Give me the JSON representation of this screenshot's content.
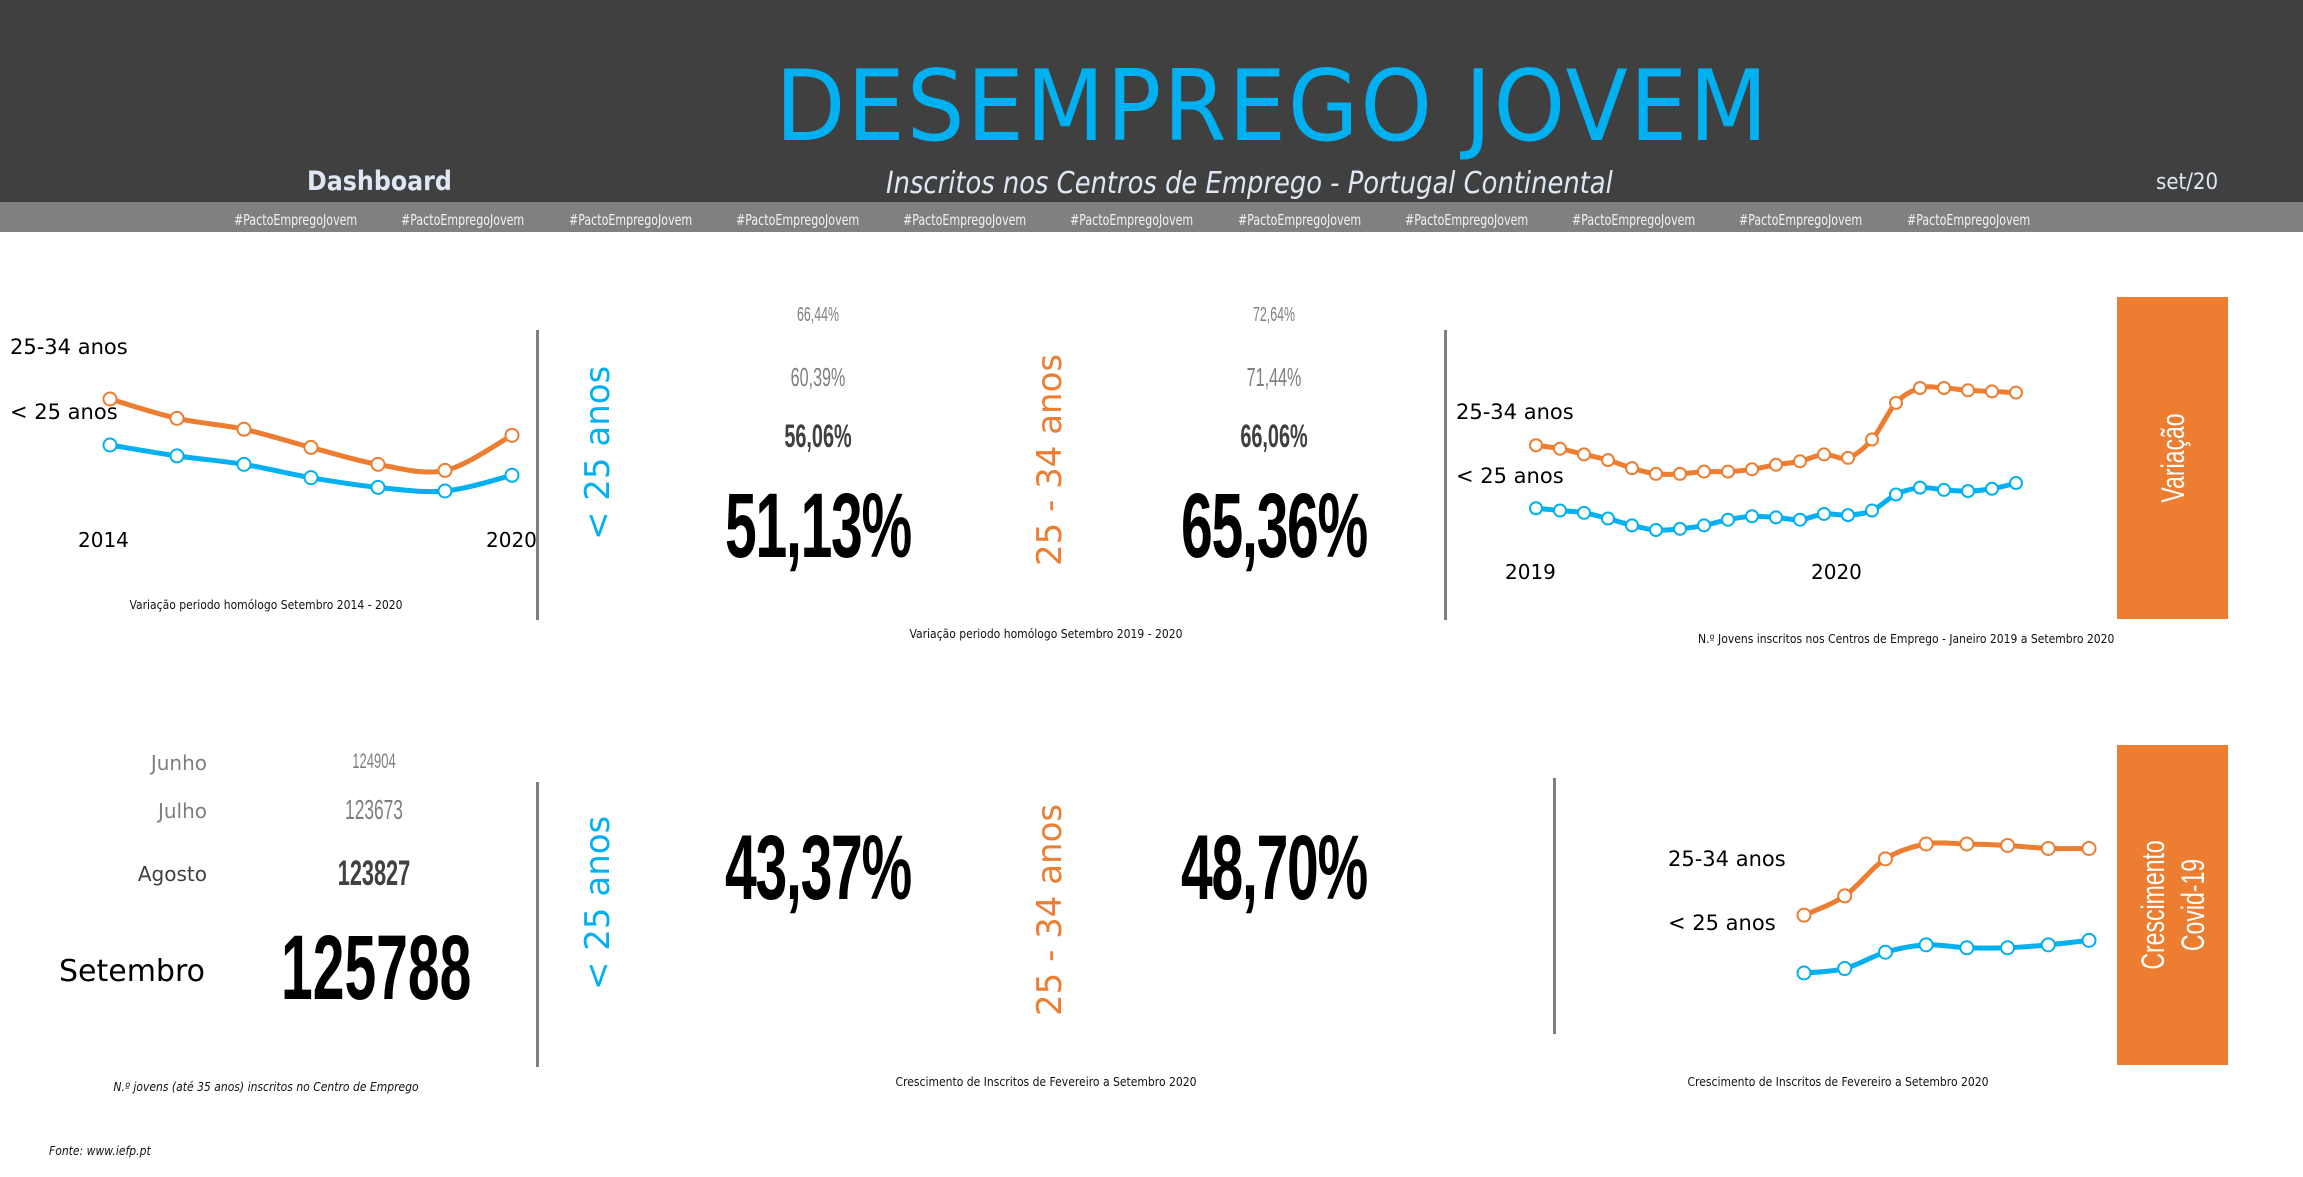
{
  "header": {
    "title": "DESEMPREGO JOVEM",
    "dashboard_label": "Dashboard",
    "subtitle": "Inscritos nos Centros de Emprego - Portugal Continental",
    "date": "set/20",
    "hashtags": [
      "#PactoEmpregoJovem",
      "#PactoEmpregoJovem",
      "#PactoEmpregoJovem",
      "#PactoEmpregoJovem",
      "#PactoEmpregoJovem",
      "#PactoEmpregoJovem",
      "#PactoEmpregoJovem",
      "#PactoEmpregoJovem",
      "#PactoEmpregoJovem",
      "#PactoEmpregoJovem",
      "#PactoEmpregoJovem"
    ]
  },
  "colors": {
    "header_bg": "#404040",
    "band_bg": "#808080",
    "title": "#00B0F0",
    "under25": "#00B0F0",
    "age25_34": "#ED7D31",
    "tab": "#ED7D31"
  },
  "labels": {
    "under25_short": "< 25 anos",
    "age25_34_short": "25-34 anos",
    "under25_vertical": "< 25 anos",
    "age25_34_vertical": "25 - 34 anos"
  },
  "variacao": {
    "tab_label": "Variação",
    "under25": {
      "history": [
        "66,44%",
        "60,39%",
        "56,06%"
      ],
      "current": "51,13%"
    },
    "age25_34": {
      "history": [
        "72,64%",
        "71,44%",
        "66,06%"
      ],
      "current": "65,36%"
    },
    "caption": "Variação periodo homólogo Setembro 2019 - 2020"
  },
  "covid": {
    "tab_label_line1": "Crescimento",
    "tab_label_line2": "Covid-19",
    "under25_growth": "43,37%",
    "age25_34_growth": "48,70%",
    "caption": "Crescimento de Inscritos de Fevereiro a Setembro 2020"
  },
  "monthly_totals": {
    "rows": [
      {
        "month": "Junho",
        "value": "124904"
      },
      {
        "month": "Julho",
        "value": "123673"
      },
      {
        "month": "Agosto",
        "value": "123827"
      },
      {
        "month": "Setembro",
        "value": "125788"
      }
    ],
    "caption": "N.º jovens (até 35 anos) inscritos no Centro de Emprego"
  },
  "source": "Fonte: www.iefp.pt",
  "chart_data": [
    {
      "id": "annual",
      "type": "line",
      "title": "",
      "caption": "Variação periodo homólogo Setembro 2014 - 2020",
      "x": [
        2014,
        2015,
        2016,
        2017,
        2018,
        2019,
        2020
      ],
      "tick_labels": [
        "2014",
        "2020"
      ],
      "ylim": [
        0,
        100
      ],
      "grid": false,
      "legend": "left",
      "series": [
        {
          "name": "25-34 anos",
          "color": "#ED7D31",
          "values": [
            80,
            72,
            67.5,
            60,
            53,
            50.5,
            65
          ]
        },
        {
          "name": "< 25 anos",
          "color": "#00B0F0",
          "values": [
            61,
            56.5,
            53,
            47.5,
            43.5,
            42,
            48.5
          ]
        }
      ]
    },
    {
      "id": "monthly",
      "type": "line",
      "title": "",
      "caption": "N.º Jovens inscritos nos Centros de Emprego - Janeiro 2019 a Setembro 2020",
      "x": [
        "jan/19",
        "fev/19",
        "mar/19",
        "abr/19",
        "mai/19",
        "jun/19",
        "jul/19",
        "ago/19",
        "set/19",
        "out/19",
        "nov/19",
        "dez/19",
        "jan/20",
        "fev/20",
        "mar/20",
        "abr/20",
        "mai/20",
        "jun/20",
        "jul/20",
        "ago/20",
        "set/20"
      ],
      "tick_labels": [
        "2019",
        "2020"
      ],
      "ylim": [
        0,
        100
      ],
      "grid": false,
      "legend": "left",
      "series": [
        {
          "name": "25-34 anos",
          "color": "#ED7D31",
          "values": [
            68,
            66.5,
            64,
            61.5,
            58,
            55.5,
            55.5,
            56.5,
            56.5,
            57.5,
            59.5,
            61,
            64,
            62.5,
            70.5,
            86.5,
            93,
            93,
            92,
            91.5,
            91
          ]
        },
        {
          "name": "< 25 anos",
          "color": "#00B0F0",
          "values": [
            40.5,
            39.5,
            38.5,
            36,
            33,
            31,
            31.5,
            33,
            35.5,
            37,
            36.5,
            35.5,
            38,
            37.5,
            39.5,
            46.5,
            49.5,
            48.5,
            48,
            49,
            51.5
          ]
        }
      ]
    },
    {
      "id": "covid",
      "type": "line",
      "title": "",
      "caption": "Crescimento de Inscritos de Fevereiro a Setembro 2020",
      "x": [
        "fev/20",
        "mar/20",
        "abr/20",
        "mai/20",
        "jun/20",
        "jul/20",
        "ago/20",
        "set/20"
      ],
      "tick_labels": [],
      "ylim": [
        0,
        100
      ],
      "grid": false,
      "legend": "left",
      "series": [
        {
          "name": "25-34 anos",
          "color": "#ED7D31",
          "values": [
            62,
            68.5,
            81,
            86,
            86,
            85.5,
            84.5,
            84.5
          ]
        },
        {
          "name": "< 25 anos",
          "color": "#00B0F0",
          "values": [
            42.5,
            44,
            49.5,
            52,
            51,
            51,
            52,
            53.5
          ]
        }
      ]
    }
  ]
}
